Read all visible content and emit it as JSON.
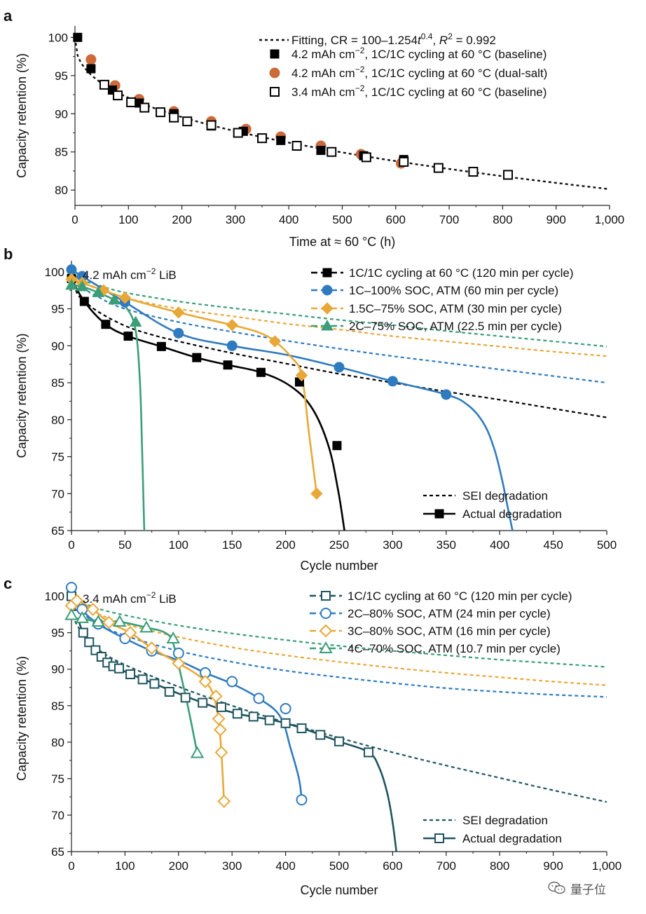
{
  "chart_data": [
    {
      "panel": "a",
      "type": "scatter",
      "xlabel": "Time at ≈ 60 °C (h)",
      "ylabel": "Capacity retention (%)",
      "xlim": [
        0,
        1000
      ],
      "ylim": [
        78,
        101.5
      ],
      "xticks": [
        0,
        100,
        200,
        300,
        400,
        500,
        600,
        700,
        800,
        900,
        1000
      ],
      "xtick_labels": [
        "0",
        "100",
        "200",
        "300",
        "400",
        "500",
        "600",
        "700",
        "800",
        "900",
        "1,000"
      ],
      "yticks": [
        80,
        85,
        90,
        95,
        100
      ],
      "fit": {
        "name_prefix": "Fitting, CR = 100–1.254",
        "t": "t",
        "t_exp": "0.4",
        "r_prefix": ", ",
        "r": "R",
        "r_exp": "2",
        "r_suffix": " = 0.992",
        "coef": 1.254,
        "exp": 0.4
      },
      "series": [
        {
          "key": "baseline42",
          "name": "4.2 mAh cm−2, 1C/1C cycling at 60 °C (baseline)",
          "name_parts": [
            "4.2 mAh cm",
            "−2",
            ", 1C/1C cycling at 60 °C (baseline)"
          ],
          "marker": "square-filled",
          "color": "#000000",
          "x": [
            5,
            30,
            70,
            120,
            185,
            255,
            315,
            385,
            460,
            540,
            615
          ],
          "y": [
            100,
            95.9,
            93.1,
            91.4,
            90.0,
            88.4,
            87.7,
            86.5,
            85.2,
            84.5,
            84.0
          ]
        },
        {
          "key": "dual",
          "name": "4.2 mAh cm−2, 1C/1C cycling at 60 °C (dual-salt)",
          "name_parts": [
            "4.2 mAh cm",
            "−2",
            ", 1C/1C cycling at 60 °C (dual-salt)"
          ],
          "marker": "circle-filled",
          "color": "#cc6a3a",
          "x": [
            30,
            75,
            120,
            185,
            255,
            320,
            385,
            460,
            535,
            610
          ],
          "y": [
            97.1,
            93.7,
            91.9,
            90.3,
            89.0,
            88.0,
            87.0,
            85.8,
            84.7,
            83.5
          ]
        },
        {
          "key": "baseline34",
          "name": "3.4 mAh cm−2, 1C/1C cycling at 60 °C (baseline)",
          "name_parts": [
            "3.4 mAh cm",
            "−2",
            ", 1C/1C cycling at 60 °C (baseline)"
          ],
          "marker": "square-open",
          "color": "#000000",
          "x": [
            55,
            80,
            105,
            130,
            160,
            185,
            210,
            255,
            305,
            350,
            415,
            480,
            545,
            615,
            680,
            745,
            810
          ],
          "y": [
            93.8,
            92.4,
            91.5,
            90.8,
            90.2,
            89.5,
            89.0,
            88.5,
            87.5,
            86.8,
            85.8,
            85.0,
            84.3,
            83.7,
            82.9,
            82.4,
            82.0
          ]
        }
      ]
    },
    {
      "panel": "b",
      "type": "line+scatter",
      "annotation": {
        "pre": "4.2 mAh cm",
        "sup": "−2",
        "post": " LiB"
      },
      "xlabel": "Cycle number",
      "ylabel": "Capacity retention (%)",
      "xlim": [
        0,
        500
      ],
      "ylim": [
        65,
        101.5
      ],
      "xticks": [
        0,
        50,
        100,
        150,
        200,
        250,
        300,
        350,
        400,
        450,
        500
      ],
      "yticks": [
        65,
        70,
        75,
        80,
        85,
        90,
        95,
        100
      ],
      "series": [
        {
          "name": "1C/1C cycling at 60 °C (120 min per cycle)",
          "color": "#000000",
          "marker": "square-filled",
          "x": [
            0,
            12,
            32,
            53,
            84,
            117,
            146,
            177,
            213,
            248
          ],
          "y": [
            99.1,
            96.0,
            92.9,
            91.3,
            89.9,
            88.4,
            87.4,
            86.4,
            85.1,
            76.5
          ],
          "curve_x": [
            0,
            12,
            32,
            53,
            84,
            117,
            146,
            177,
            205,
            225,
            240,
            249,
            255
          ],
          "curve_y": [
            99.1,
            96.0,
            92.9,
            91.3,
            89.9,
            88.4,
            87.4,
            86.4,
            84.5,
            81.5,
            76.5,
            70.5,
            65.0
          ],
          "sei_x": [
            0,
            5,
            12,
            25,
            50,
            75,
            100,
            150,
            200,
            250,
            300,
            350,
            400,
            450,
            500
          ],
          "sei_y": [
            100,
            97.2,
            96.1,
            94.6,
            92.7,
            91.5,
            90.6,
            89.0,
            87.6,
            86.2,
            85.0,
            83.8,
            82.7,
            81.5,
            80.3
          ]
        },
        {
          "name": "1C–100% SOC, ATM (60 min per cycle)",
          "color": "#2f7bbf",
          "marker": "circle-filled",
          "x": [
            0,
            10,
            50,
            100,
            150,
            250,
            300,
            350
          ],
          "y": [
            100.3,
            99.4,
            95.9,
            91.7,
            90.0,
            87.1,
            85.2,
            83.4
          ],
          "curve_x": [
            0,
            10,
            50,
            100,
            150,
            200,
            250,
            300,
            350,
            370,
            385,
            395,
            402,
            407,
            412
          ],
          "curve_y": [
            100.3,
            99.4,
            95.9,
            91.7,
            90.0,
            88.8,
            87.1,
            85.2,
            83.4,
            82.0,
            79.5,
            76.0,
            72.0,
            68.5,
            65.0
          ],
          "sei_x": [
            0,
            10,
            25,
            50,
            100,
            150,
            200,
            250,
            300,
            350,
            400,
            450,
            500
          ],
          "sei_y": [
            100,
            98.0,
            96.6,
            95.0,
            93.2,
            91.9,
            90.7,
            89.6,
            88.6,
            87.7,
            86.8,
            85.9,
            85.0
          ]
        },
        {
          "name": "1.5C–75% SOC, ATM (30 min per cycle)",
          "color": "#e8a838",
          "marker": "diamond-filled",
          "x": [
            0,
            10,
            30,
            50,
            100,
            150,
            190,
            215,
            229
          ],
          "y": [
            99.0,
            98.5,
            97.5,
            96.5,
            94.5,
            92.8,
            90.6,
            86.0,
            70.0
          ],
          "curve_x": [
            0,
            10,
            30,
            50,
            100,
            150,
            175,
            190,
            205,
            215,
            222,
            229
          ],
          "curve_y": [
            99.0,
            98.5,
            97.5,
            96.5,
            94.5,
            92.8,
            91.8,
            90.6,
            88.5,
            86.0,
            78.0,
            70.0
          ],
          "sei_x": [
            0,
            10,
            25,
            50,
            100,
            150,
            200,
            250,
            300,
            350,
            400,
            450,
            500
          ],
          "sei_y": [
            100,
            98.6,
            97.7,
            96.5,
            95.0,
            94.0,
            93.0,
            92.2,
            91.3,
            90.6,
            89.9,
            89.2,
            88.6
          ]
        },
        {
          "name": "2C–75% SOC, ATM (22.5 min per cycle)",
          "color": "#3a9e78",
          "marker": "triangle-filled",
          "x": [
            0,
            10,
            25,
            40,
            60
          ],
          "y": [
            98.2,
            98.0,
            97.2,
            96.2,
            93.2
          ],
          "curve_x": [
            0,
            10,
            25,
            40,
            52,
            60,
            64,
            66,
            68
          ],
          "curve_y": [
            98.2,
            98.0,
            97.2,
            96.2,
            95.0,
            92.0,
            85.0,
            76.0,
            65.0
          ],
          "sei_x": [
            0,
            10,
            25,
            50,
            100,
            150,
            200,
            250,
            300,
            350,
            400,
            450,
            500
          ],
          "sei_y": [
            100,
            98.9,
            98.2,
            97.2,
            96.0,
            95.1,
            94.3,
            93.5,
            92.8,
            92.0,
            91.3,
            90.6,
            89.9
          ]
        }
      ],
      "legend2": [
        {
          "name": "SEI degradation",
          "style": "dashed"
        },
        {
          "name": "Actual degradation",
          "style": "solid-marker"
        }
      ]
    },
    {
      "panel": "c",
      "type": "line+scatter",
      "annotation": {
        "pre": "3.4 mAh cm",
        "sup": "−2",
        "post": " LiB"
      },
      "xlabel": "Cycle number",
      "ylabel": "Capacity retention (%)",
      "xlim": [
        0,
        1000
      ],
      "ylim": [
        65,
        101.5
      ],
      "xticks": [
        0,
        100,
        200,
        300,
        400,
        500,
        600,
        700,
        800,
        900,
        1000
      ],
      "xtick_labels": [
        "0",
        "100",
        "200",
        "300",
        "400",
        "500",
        "600",
        "700",
        "800",
        "900",
        "1,000"
      ],
      "yticks": [
        65,
        70,
        75,
        80,
        85,
        90,
        95,
        100
      ],
      "series": [
        {
          "name": "1C/1C cycling at 60 °C (120 min per cycle)",
          "color": "#1f5560",
          "marker": "square-open",
          "x": [
            0,
            10,
            22,
            33,
            45,
            56,
            67,
            78,
            89,
            110,
            133,
            155,
            183,
            213,
            245,
            280,
            310,
            340,
            370,
            400,
            430,
            465,
            500,
            555
          ],
          "y": [
            100,
            97.5,
            95.0,
            93.7,
            92.6,
            91.7,
            90.9,
            90.4,
            90.1,
            89.3,
            88.6,
            88.0,
            86.9,
            86.1,
            85.4,
            84.8,
            83.9,
            83.5,
            83.0,
            82.6,
            81.9,
            81.0,
            80.1,
            78.6
          ],
          "curve_x": [
            0,
            10,
            22,
            45,
            89,
            155,
            245,
            310,
            400,
            500,
            555,
            575,
            590,
            600,
            607
          ],
          "curve_y": [
            100,
            97.5,
            95.0,
            92.6,
            90.1,
            88.0,
            85.4,
            83.9,
            82.6,
            80.1,
            78.6,
            76.5,
            73.0,
            69.0,
            65.0
          ],
          "sei_x": [
            0,
            5,
            10,
            25,
            50,
            100,
            200,
            300,
            400,
            500,
            600,
            700,
            800,
            900,
            1000
          ],
          "sei_y": [
            100,
            97.2,
            96.1,
            94.6,
            92.7,
            90.6,
            87.6,
            85.0,
            82.7,
            80.6,
            78.6,
            76.8,
            75.1,
            73.4,
            71.8
          ]
        },
        {
          "name": "2C–80% SOC, ATM (24 min per cycle)",
          "color": "#2f7bbf",
          "marker": "circle-open",
          "x": [
            0,
            20,
            50,
            100,
            150,
            200,
            250,
            300,
            350,
            400,
            430
          ],
          "y": [
            101.2,
            98.2,
            96.2,
            94.2,
            92.5,
            92.2,
            89.5,
            88.3,
            86.0,
            84.6,
            72.1
          ],
          "curve_x": [
            0,
            20,
            50,
            100,
            150,
            200,
            250,
            300,
            350,
            390,
            410,
            425,
            430
          ],
          "curve_y": [
            101.2,
            98.2,
            96.2,
            94.2,
            92.5,
            91.2,
            89.5,
            88.0,
            86.0,
            83.5,
            79.0,
            75.0,
            72.1
          ],
          "sei_x": [
            0,
            20,
            50,
            100,
            200,
            300,
            400,
            500,
            600,
            700,
            800,
            900,
            1000
          ],
          "sei_y": [
            100,
            97.8,
            96.2,
            94.6,
            92.5,
            91.0,
            89.8,
            88.9,
            88.1,
            87.4,
            86.9,
            86.5,
            86.2
          ]
        },
        {
          "name": "3C–80% SOC, ATM (16 min per cycle)",
          "color": "#e8a838",
          "marker": "diamond-open",
          "x": [
            0,
            10,
            40,
            70,
            110,
            150,
            200,
            250,
            270,
            275,
            278,
            280,
            285
          ],
          "y": [
            98.7,
            99.4,
            98.2,
            96.4,
            95.0,
            92.9,
            90.8,
            88.3,
            86.3,
            83.2,
            81.7,
            78.6,
            71.9
          ],
          "curve_x": [
            0,
            10,
            40,
            70,
            110,
            150,
            200,
            230,
            250,
            265,
            275,
            280,
            285
          ],
          "curve_y": [
            98.7,
            99.4,
            98.2,
            96.4,
            95.0,
            92.9,
            90.8,
            89.5,
            88.3,
            86.5,
            83.0,
            78.6,
            71.9
          ],
          "sei_x": [
            0,
            20,
            50,
            100,
            200,
            300,
            400,
            500,
            600,
            700,
            800,
            900,
            1000
          ],
          "sei_y": [
            100,
            98.8,
            97.6,
            96.2,
            94.4,
            93.0,
            91.9,
            91.0,
            90.2,
            89.5,
            88.9,
            88.3,
            87.8
          ]
        },
        {
          "name": "4C–70% SOC, ATM (10.7 min per cycle)",
          "color": "#3a9e78",
          "marker": "triangle-open",
          "x": [
            0,
            20,
            50,
            90,
            140,
            190,
            235
          ],
          "y": [
            97.4,
            97.0,
            96.5,
            96.5,
            95.7,
            94.2,
            78.5
          ],
          "curve_x": [
            0,
            20,
            50,
            90,
            140,
            175,
            190,
            205,
            220,
            235
          ],
          "curve_y": [
            97.4,
            97.0,
            96.5,
            96.5,
            95.7,
            95.0,
            93.5,
            89.0,
            84.0,
            78.5
          ],
          "sei_x": [
            0,
            20,
            50,
            100,
            200,
            300,
            400,
            500,
            600,
            700,
            800,
            900,
            1000
          ],
          "sei_y": [
            100,
            99.2,
            98.3,
            97.4,
            96.0,
            94.9,
            94.0,
            93.2,
            92.5,
            91.9,
            91.3,
            90.8,
            90.3
          ]
        }
      ],
      "legend2": [
        {
          "name": "SEI degradation",
          "style": "dashed"
        },
        {
          "name": "Actual degradation",
          "style": "solid-marker"
        }
      ]
    }
  ],
  "watermark": {
    "text": "量子位",
    "icon": "wechat-logo-icon"
  }
}
